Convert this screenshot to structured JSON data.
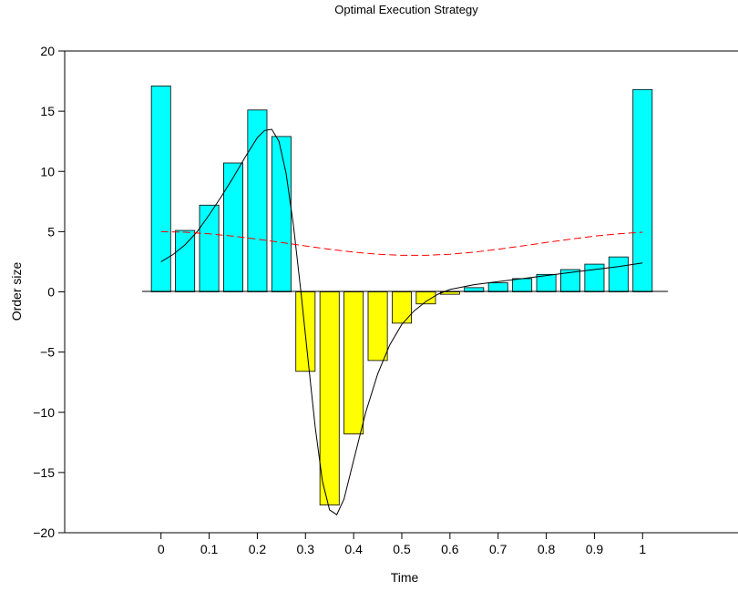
{
  "chart_data": {
    "type": "bar",
    "title": "Optimal Execution Strategy",
    "xlabel": "Time",
    "ylabel": "Order size",
    "xlim": [
      -0.2,
      1.2
    ],
    "ylim": [
      -20,
      20
    ],
    "xticks": [
      0,
      0.1,
      0.2,
      0.3,
      0.4,
      0.5,
      0.6,
      0.7,
      0.8,
      0.9,
      1
    ],
    "xtick_labels": [
      "0",
      "0.1",
      "0.2",
      "0.3",
      "0.4",
      "0.5",
      "0.6",
      "0.7",
      "0.8",
      "0.9",
      "1"
    ],
    "yticks": [
      -20,
      -15,
      -10,
      -5,
      0,
      5,
      10,
      15,
      20
    ],
    "ytick_labels": [
      "−20",
      "−15",
      "−10",
      "−5",
      "0",
      "5",
      "10",
      "15",
      "20"
    ],
    "grid": false,
    "bar_width": 0.04,
    "positive_color": "#00ffff",
    "negative_color": "#ffff00",
    "bars": {
      "x": [
        0,
        0.05,
        0.1,
        0.15,
        0.2,
        0.25,
        0.3,
        0.35,
        0.4,
        0.45,
        0.5,
        0.55,
        0.6,
        0.65,
        0.7,
        0.75,
        0.8,
        0.85,
        0.9,
        0.95,
        1
      ],
      "values": [
        17.1,
        5.1,
        7.2,
        10.7,
        15.1,
        12.9,
        -6.6,
        -17.7,
        -11.8,
        -5.7,
        -2.6,
        -1.0,
        -0.2,
        0.35,
        0.75,
        1.1,
        1.45,
        1.85,
        2.3,
        2.9,
        16.8
      ]
    },
    "series": [
      {
        "style": "solid",
        "color": "#000000",
        "x": [
          0,
          0.025,
          0.05,
          0.075,
          0.1,
          0.125,
          0.15,
          0.175,
          0.2,
          0.215,
          0.23,
          0.245,
          0.26,
          0.275,
          0.29,
          0.305,
          0.32,
          0.335,
          0.35,
          0.365,
          0.38,
          0.4,
          0.425,
          0.45,
          0.475,
          0.5,
          0.525,
          0.55,
          0.575,
          0.6,
          0.65,
          0.7,
          0.75,
          0.8,
          0.85,
          0.9,
          0.95,
          1
        ],
        "y": [
          2.5,
          3.1,
          3.9,
          5.0,
          6.4,
          7.9,
          9.5,
          11.2,
          12.8,
          13.4,
          13.5,
          12.5,
          9.8,
          5.5,
          0.2,
          -5.5,
          -11.2,
          -15.7,
          -18.1,
          -18.5,
          -17.2,
          -14.0,
          -10.0,
          -6.8,
          -4.4,
          -2.7,
          -1.6,
          -0.8,
          -0.2,
          0.2,
          0.6,
          0.85,
          1.1,
          1.35,
          1.6,
          1.85,
          2.1,
          2.4
        ]
      },
      {
        "style": "dashed",
        "color": "#ff0000",
        "x": [
          0,
          0.05,
          0.1,
          0.15,
          0.2,
          0.25,
          0.3,
          0.35,
          0.4,
          0.45,
          0.5,
          0.55,
          0.6,
          0.65,
          0.7,
          0.75,
          0.8,
          0.85,
          0.9,
          0.95,
          1
        ],
        "y": [
          5.0,
          4.95,
          4.82,
          4.63,
          4.38,
          4.1,
          3.81,
          3.54,
          3.3,
          3.12,
          3.03,
          3.03,
          3.12,
          3.3,
          3.54,
          3.81,
          4.1,
          4.38,
          4.63,
          4.82,
          4.95
        ]
      }
    ]
  }
}
